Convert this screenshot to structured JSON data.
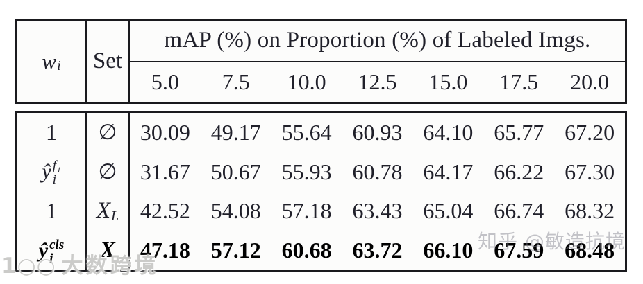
{
  "table": {
    "header": {
      "weight_symbol": {
        "main": "w",
        "sub": "i"
      },
      "set_label": "Set",
      "span_title": "mAP (%) on Proportion (%) of Labeled Imgs.",
      "proportions": [
        "5.0",
        "7.5",
        "10.0",
        "12.5",
        "15.0",
        "17.5",
        "20.0"
      ]
    },
    "rows": [
      {
        "weight": {
          "main": "1",
          "sub": "",
          "sup": ""
        },
        "set": {
          "main": "∅",
          "sub": ""
        },
        "values": [
          "30.09",
          "49.17",
          "55.64",
          "60.93",
          "64.10",
          "65.77",
          "67.20"
        ],
        "bold": false
      },
      {
        "weight": {
          "main": "ŷ",
          "sub": "i",
          "sup": "f₁"
        },
        "set": {
          "main": "∅",
          "sub": ""
        },
        "values": [
          "31.67",
          "50.67",
          "55.93",
          "60.78",
          "64.17",
          "66.22",
          "67.30"
        ],
        "bold": false
      },
      {
        "weight": {
          "main": "1",
          "sub": "",
          "sup": ""
        },
        "set": {
          "main": "X",
          "sub": "L"
        },
        "values": [
          "42.52",
          "54.08",
          "57.18",
          "63.43",
          "65.04",
          "66.74",
          "68.32"
        ],
        "bold": false
      },
      {
        "weight": {
          "main": "ŷ",
          "sub": "i",
          "sup": "cls"
        },
        "set": {
          "main": "X",
          "sub": ""
        },
        "values": [
          "47.18",
          "57.12",
          "60.68",
          "63.72",
          "66.10",
          "67.59",
          "68.48"
        ],
        "bold": true
      }
    ],
    "border_color": "#1a1a1e",
    "text_color": "#20202a"
  },
  "watermarks": {
    "bottom_left": {
      "logo": "1○○",
      "text": "大数跨境"
    },
    "right": {
      "text": "知乎 @敏造抗境"
    }
  }
}
